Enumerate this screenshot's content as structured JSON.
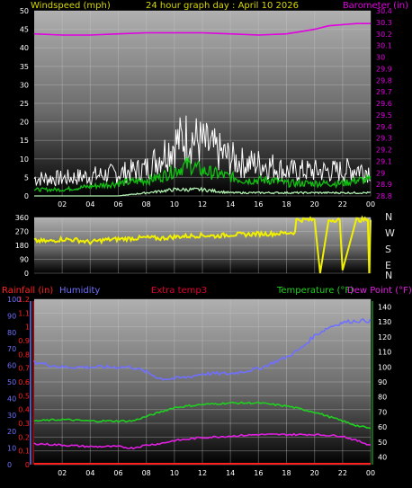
{
  "header": {
    "left_label": "Windspeed (mph)",
    "center_title": "24 hour graph day : April 10 2026",
    "right_label": "Barometer (in)"
  },
  "colors": {
    "label_yellow": "#d8d800",
    "baro_magenta": "#e000e0",
    "rain_red": "#ff2020",
    "humidity_blue": "#7070ff",
    "extra_temp": "#e00030",
    "temp_green": "#20d020",
    "dewpoint_magenta": "#e020e0",
    "winddir_yellow": "#f0f000",
    "wind_white": "#ffffff",
    "wind_avg_green": "#10c010",
    "wind_gust_lightgreen": "#b0f0b0",
    "bg_top": "#a8a8a8",
    "bg_bottom": "#000000"
  },
  "x_ticks": [
    "02",
    "04",
    "06",
    "08",
    "10",
    "12",
    "14",
    "16",
    "18",
    "20",
    "22",
    "00"
  ],
  "panel3_header": {
    "rainfall": "Rainfall (in)",
    "humidity": "Humidity",
    "extra_temp": "Extra temp3",
    "temperature": "Temperature (°F)",
    "dew_point": "Dew Point (°F)"
  },
  "direction_labels": [
    "N",
    "W",
    "S",
    "E",
    "N"
  ],
  "chart_data": [
    {
      "type": "line",
      "title": "24 hour graph day : April 10 2026",
      "x_unit": "hour",
      "y_left": {
        "label": "Windspeed (mph)",
        "ticks": [
          "0",
          "5",
          "10",
          "15",
          "20",
          "25",
          "30",
          "35",
          "40",
          "45",
          "50"
        ],
        "ylim": [
          0,
          50
        ]
      },
      "y_right": {
        "label": "Barometer (in)",
        "ticks": [
          "28.8",
          "28.9",
          "29",
          "29.1",
          "29.2",
          "29.3",
          "29.4",
          "29.5",
          "29.6",
          "29.7",
          "29.8",
          "29.9",
          "30",
          "30.1",
          "30.2",
          "30.3",
          "30.4"
        ],
        "ylim": [
          28.8,
          30.4
        ]
      },
      "series": [
        {
          "name": "Barometer",
          "axis": "right",
          "x": [
            0,
            2,
            4,
            6,
            8,
            10,
            12,
            14,
            16,
            18,
            19,
            20,
            21,
            22,
            23,
            24
          ],
          "values": [
            30.2,
            30.19,
            30.19,
            30.2,
            30.21,
            30.21,
            30.21,
            30.2,
            30.19,
            30.2,
            30.22,
            30.24,
            30.27,
            30.28,
            30.29,
            30.29
          ]
        },
        {
          "name": "Wind gust",
          "axis": "left",
          "x": [
            0,
            2,
            4,
            6,
            8,
            9,
            10,
            11,
            12,
            13,
            14,
            15,
            16,
            17,
            18,
            19,
            20,
            21,
            22,
            23,
            24
          ],
          "values": [
            7,
            7,
            8,
            9,
            11,
            16,
            21,
            24,
            21,
            18,
            15,
            13,
            13,
            12,
            10,
            10,
            10,
            10,
            10,
            11,
            10
          ]
        },
        {
          "name": "Wind average",
          "axis": "left",
          "x": [
            0,
            2,
            4,
            6,
            8,
            9,
            10,
            11,
            12,
            13,
            14,
            15,
            16,
            17,
            18,
            19,
            20,
            21,
            22,
            23,
            24
          ],
          "values": [
            2,
            2,
            3,
            4,
            5,
            6,
            8,
            10,
            8,
            7,
            6,
            5,
            5,
            5,
            4,
            4,
            4,
            4,
            4,
            5,
            5
          ]
        },
        {
          "name": "Wind lull",
          "axis": "left",
          "x": [
            0,
            2,
            4,
            6,
            8,
            10,
            12,
            14,
            16,
            18,
            20,
            22,
            24
          ],
          "values": [
            0,
            0,
            0,
            0,
            1,
            2,
            2,
            1,
            1,
            1,
            1,
            1,
            1
          ]
        }
      ]
    },
    {
      "type": "line",
      "y_ticks": [
        "0",
        "90",
        "180",
        "270",
        "360"
      ],
      "ylim": [
        0,
        360
      ],
      "series": [
        {
          "name": "Wind direction",
          "x": [
            0,
            1,
            2,
            3,
            4,
            5,
            6,
            7,
            8,
            9,
            10,
            11,
            12,
            13,
            14,
            15,
            16,
            17,
            18,
            18.6,
            18.7,
            20,
            20.4,
            21,
            21.8,
            22,
            23,
            23.8,
            23.9,
            24
          ],
          "values": [
            210,
            205,
            220,
            215,
            200,
            215,
            220,
            225,
            230,
            225,
            235,
            240,
            245,
            240,
            250,
            250,
            255,
            255,
            260,
            265,
            345,
            345,
            0,
            345,
            345,
            20,
            345,
            345,
            0,
            345
          ]
        }
      ]
    },
    {
      "type": "line",
      "y_left_outer": {
        "label": "Humidity",
        "ticks": [
          "0",
          "10",
          "20",
          "30",
          "40",
          "50",
          "60",
          "70",
          "80",
          "90",
          "100"
        ],
        "ylim": [
          0,
          100
        ]
      },
      "y_left_inner": {
        "label": "Rainfall (in)",
        "ticks": [
          "0",
          "0.1",
          "0.2",
          "0.3",
          "0.4",
          "0.5",
          "0.6",
          "0.7",
          "0.8",
          "0.9",
          "1",
          "1.1",
          "1.2"
        ],
        "ylim": [
          0,
          1.2
        ]
      },
      "y_right": {
        "label": "Temperature (°F)",
        "ticks": [
          "40",
          "50",
          "60",
          "70",
          "80",
          "90",
          "100",
          "110",
          "120",
          "130",
          "140"
        ],
        "ylim": [
          35,
          145
        ]
      },
      "series": [
        {
          "name": "Humidity",
          "axis": "left_outer",
          "x": [
            0,
            2,
            4,
            6,
            7,
            8,
            9,
            10,
            11,
            12,
            14,
            16,
            18,
            19,
            20,
            21,
            22,
            23,
            24
          ],
          "values": [
            62,
            59,
            59,
            59,
            59,
            56,
            52,
            52,
            53,
            55,
            55,
            58,
            65,
            70,
            78,
            83,
            86,
            87,
            87
          ]
        },
        {
          "name": "Temperature",
          "axis": "right",
          "x": [
            0,
            2,
            4,
            6,
            7,
            8,
            9,
            10,
            12,
            14,
            16,
            18,
            20,
            22,
            23,
            24
          ],
          "values": [
            64,
            65,
            64,
            64,
            64,
            67,
            70,
            73,
            75,
            76,
            76,
            74,
            70,
            64,
            61,
            59
          ]
        },
        {
          "name": "Dew Point",
          "axis": "right",
          "x": [
            0,
            2,
            4,
            6,
            7,
            8,
            9,
            10,
            12,
            14,
            16,
            18,
            20,
            22,
            23,
            24
          ],
          "values": [
            49,
            48,
            47,
            47,
            46,
            48,
            49,
            51,
            53,
            54,
            55,
            55,
            55,
            54,
            51,
            48
          ]
        },
        {
          "name": "Rainfall",
          "axis": "left_inner",
          "x": [
            0,
            24
          ],
          "values": [
            0,
            0
          ]
        }
      ]
    }
  ]
}
